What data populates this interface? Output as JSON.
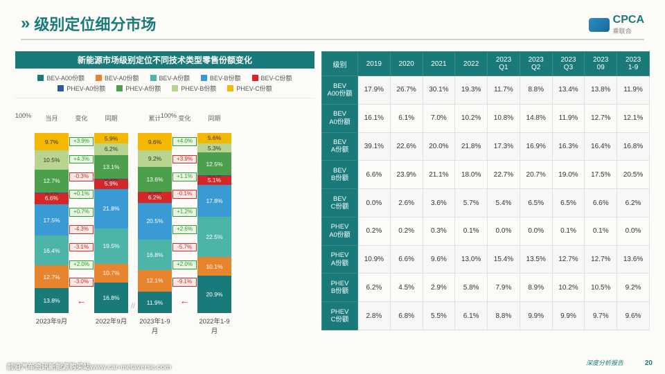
{
  "title": "级别定位细分市场",
  "logo": {
    "text": "CPCA",
    "sub": "乘联合"
  },
  "chart": {
    "title": "新能源市场级别定位不同技术类型零售份额变化",
    "legend": [
      {
        "label": "BEV-A00份额",
        "color": "#1a7a7a"
      },
      {
        "label": "BEV-A0份额",
        "color": "#e8832e"
      },
      {
        "label": "BEV-A份额",
        "color": "#4cb5a8"
      },
      {
        "label": "BEV-B份额",
        "color": "#3a9bd4"
      },
      {
        "label": "BEV-C份额",
        "color": "#d62728"
      },
      {
        "label": "PHEV-A0份额",
        "color": "#2c5aa0"
      },
      {
        "label": "PHEV-A份额",
        "color": "#4c9f4c"
      },
      {
        "label": "PHEV-B份额",
        "color": "#b8d48e"
      },
      {
        "label": "PHEV-C份额",
        "color": "#f5b800"
      }
    ],
    "colHeads": [
      "当月",
      "变化",
      "同期",
      "累计",
      "变化",
      "同期"
    ],
    "groups": [
      {
        "bars": [
          {
            "x": "2023年9月",
            "segs": [
              {
                "v": 13.8,
                "c": "#1a7a7a"
              },
              {
                "v": 12.7,
                "c": "#e8832e"
              },
              {
                "v": 16.4,
                "c": "#4cb5a8"
              },
              {
                "v": 17.5,
                "c": "#3a9bd4"
              },
              {
                "v": 6.6,
                "c": "#d62728"
              },
              {
                "v": 0.1,
                "c": "#2c5aa0",
                "dark": true,
                "txt": "0.1%"
              },
              {
                "v": 12.7,
                "c": "#4c9f4c"
              },
              {
                "v": 10.5,
                "c": "#b8d48e",
                "dark": true
              },
              {
                "v": 9.7,
                "c": "#f5b800",
                "dark": true
              }
            ]
          },
          {
            "x": "2022年9月",
            "segs": [
              {
                "v": 16.8,
                "c": "#1a7a7a"
              },
              {
                "v": 10.7,
                "c": "#e8832e"
              },
              {
                "v": 19.5,
                "c": "#4cb5a8"
              },
              {
                "v": 21.8,
                "c": "#3a9bd4"
              },
              {
                "v": 5.9,
                "c": "#d62728"
              },
              {
                "v": 0.1,
                "c": "#2c5aa0",
                "dark": true,
                "txt": "0.1%"
              },
              {
                "v": 13.1,
                "c": "#4c9f4c"
              },
              {
                "v": 6.2,
                "c": "#b8d48e",
                "dark": true
              },
              {
                "v": 5.9,
                "c": "#f5b800",
                "dark": true
              }
            ]
          }
        ],
        "delta": [
          {
            "v": "-3.0%",
            "d": "neg"
          },
          {
            "v": "+2.0%",
            "d": "pos"
          },
          {
            "v": "-3.1%",
            "d": "neg"
          },
          {
            "v": "-4.3%",
            "d": "neg"
          },
          {
            "v": "+0.7%",
            "d": "pos"
          },
          {
            "v": "+0.1%",
            "d": "pos"
          },
          {
            "v": "-0.3%",
            "d": "neg"
          },
          {
            "v": "+4.3%",
            "d": "pos"
          },
          {
            "v": "+3.9%",
            "d": "pos"
          }
        ]
      },
      {
        "bars": [
          {
            "x": "2023年1-9月",
            "segs": [
              {
                "v": 11.9,
                "c": "#1a7a7a"
              },
              {
                "v": 12.1,
                "c": "#e8832e"
              },
              {
                "v": 16.8,
                "c": "#4cb5a8"
              },
              {
                "v": 20.5,
                "c": "#3a9bd4"
              },
              {
                "v": 6.2,
                "c": "#d62728"
              },
              {
                "v": 0.0,
                "c": "#2c5aa0",
                "txt": "0.0%",
                "dark": true
              },
              {
                "v": 13.6,
                "c": "#4c9f4c"
              },
              {
                "v": 9.2,
                "c": "#b8d48e",
                "dark": true
              },
              {
                "v": 9.6,
                "c": "#f5b800",
                "dark": true
              }
            ]
          },
          {
            "x": "2022年1-9月",
            "segs": [
              {
                "v": 20.9,
                "c": "#1a7a7a"
              },
              {
                "v": 10.1,
                "c": "#e8832e"
              },
              {
                "v": 22.5,
                "c": "#4cb5a8"
              },
              {
                "v": 17.8,
                "c": "#3a9bd4"
              },
              {
                "v": 5.1,
                "c": "#d62728"
              },
              {
                "v": 0.2,
                "c": "#2c5aa0",
                "txt": "0.2%",
                "dark": true
              },
              {
                "v": 12.5,
                "c": "#4c9f4c"
              },
              {
                "v": 5.3,
                "c": "#b8d48e",
                "dark": true
              },
              {
                "v": 5.6,
                "c": "#f5b800",
                "dark": true
              }
            ]
          }
        ],
        "delta": [
          {
            "v": "-9.1%",
            "d": "neg"
          },
          {
            "v": "+2.0%",
            "d": "pos"
          },
          {
            "v": "-5.7%",
            "d": "neg"
          },
          {
            "v": "+2.6%",
            "d": "pos"
          },
          {
            "v": "+1.2%",
            "d": "pos"
          },
          {
            "v": "-0.1%",
            "d": "neg"
          },
          {
            "v": "+1.1%",
            "d": "pos"
          },
          {
            "v": "+3.9%",
            "d": "neg"
          },
          {
            "v": "+4.0%",
            "d": "pos"
          }
        ]
      }
    ]
  },
  "table": {
    "headers": [
      "级别",
      "2019",
      "2020",
      "2021",
      "2022",
      "2023\nQ1",
      "2023\nQ2",
      "2023\nQ3",
      "2023\n09",
      "2023\n1-9"
    ],
    "rows": [
      [
        "BEV\nA00份额",
        "17.9%",
        "26.7%",
        "30.1%",
        "19.3%",
        "11.7%",
        "8.8%",
        "13.4%",
        "13.8%",
        "11.9%"
      ],
      [
        "BEV\nA0份额",
        "16.1%",
        "6.1%",
        "7.0%",
        "10.2%",
        "10.8%",
        "14.8%",
        "11.9%",
        "12.7%",
        "12.1%"
      ],
      [
        "BEV\nA份额",
        "39.1%",
        "22.6%",
        "20.0%",
        "21.8%",
        "17.3%",
        "16.9%",
        "16.3%",
        "16.4%",
        "16.8%"
      ],
      [
        "BEV\nB份额",
        "6.6%",
        "23.9%",
        "21.1%",
        "18.0%",
        "22.7%",
        "20.7%",
        "19.0%",
        "17.5%",
        "20.5%"
      ],
      [
        "BEV\nC份额",
        "0.0%",
        "2.6%",
        "3.6%",
        "5.7%",
        "5.4%",
        "6.5%",
        "6.5%",
        "6.6%",
        "6.2%"
      ],
      [
        "PHEV\nA0份额",
        "0.2%",
        "0.2%",
        "0.3%",
        "0.1%",
        "0.0%",
        "0.0%",
        "0.1%",
        "0.1%",
        "0.0%"
      ],
      [
        "PHEV\nA份额",
        "10.9%",
        "6.6%",
        "9.6%",
        "13.0%",
        "15.4%",
        "13.5%",
        "12.7%",
        "12.7%",
        "13.6%"
      ],
      [
        "PHEV\nB份额",
        "6.2%",
        "4.5%",
        "2.9%",
        "5.8%",
        "7.9%",
        "8.9%",
        "10.2%",
        "10.5%",
        "9.2%"
      ],
      [
        "PHEV\nC份额",
        "2.8%",
        "6.8%",
        "5.5%",
        "6.1%",
        "8.8%",
        "9.9%",
        "9.9%",
        "9.7%",
        "9.6%"
      ]
    ]
  },
  "footer": {
    "left": "前沿汽车资讯新能源购买站www.car-metaverse.com",
    "right": "深度分析报告"
  },
  "page": "20",
  "watermark": "前沿汽车资讯新能源购买站www.car-metaverse.com"
}
